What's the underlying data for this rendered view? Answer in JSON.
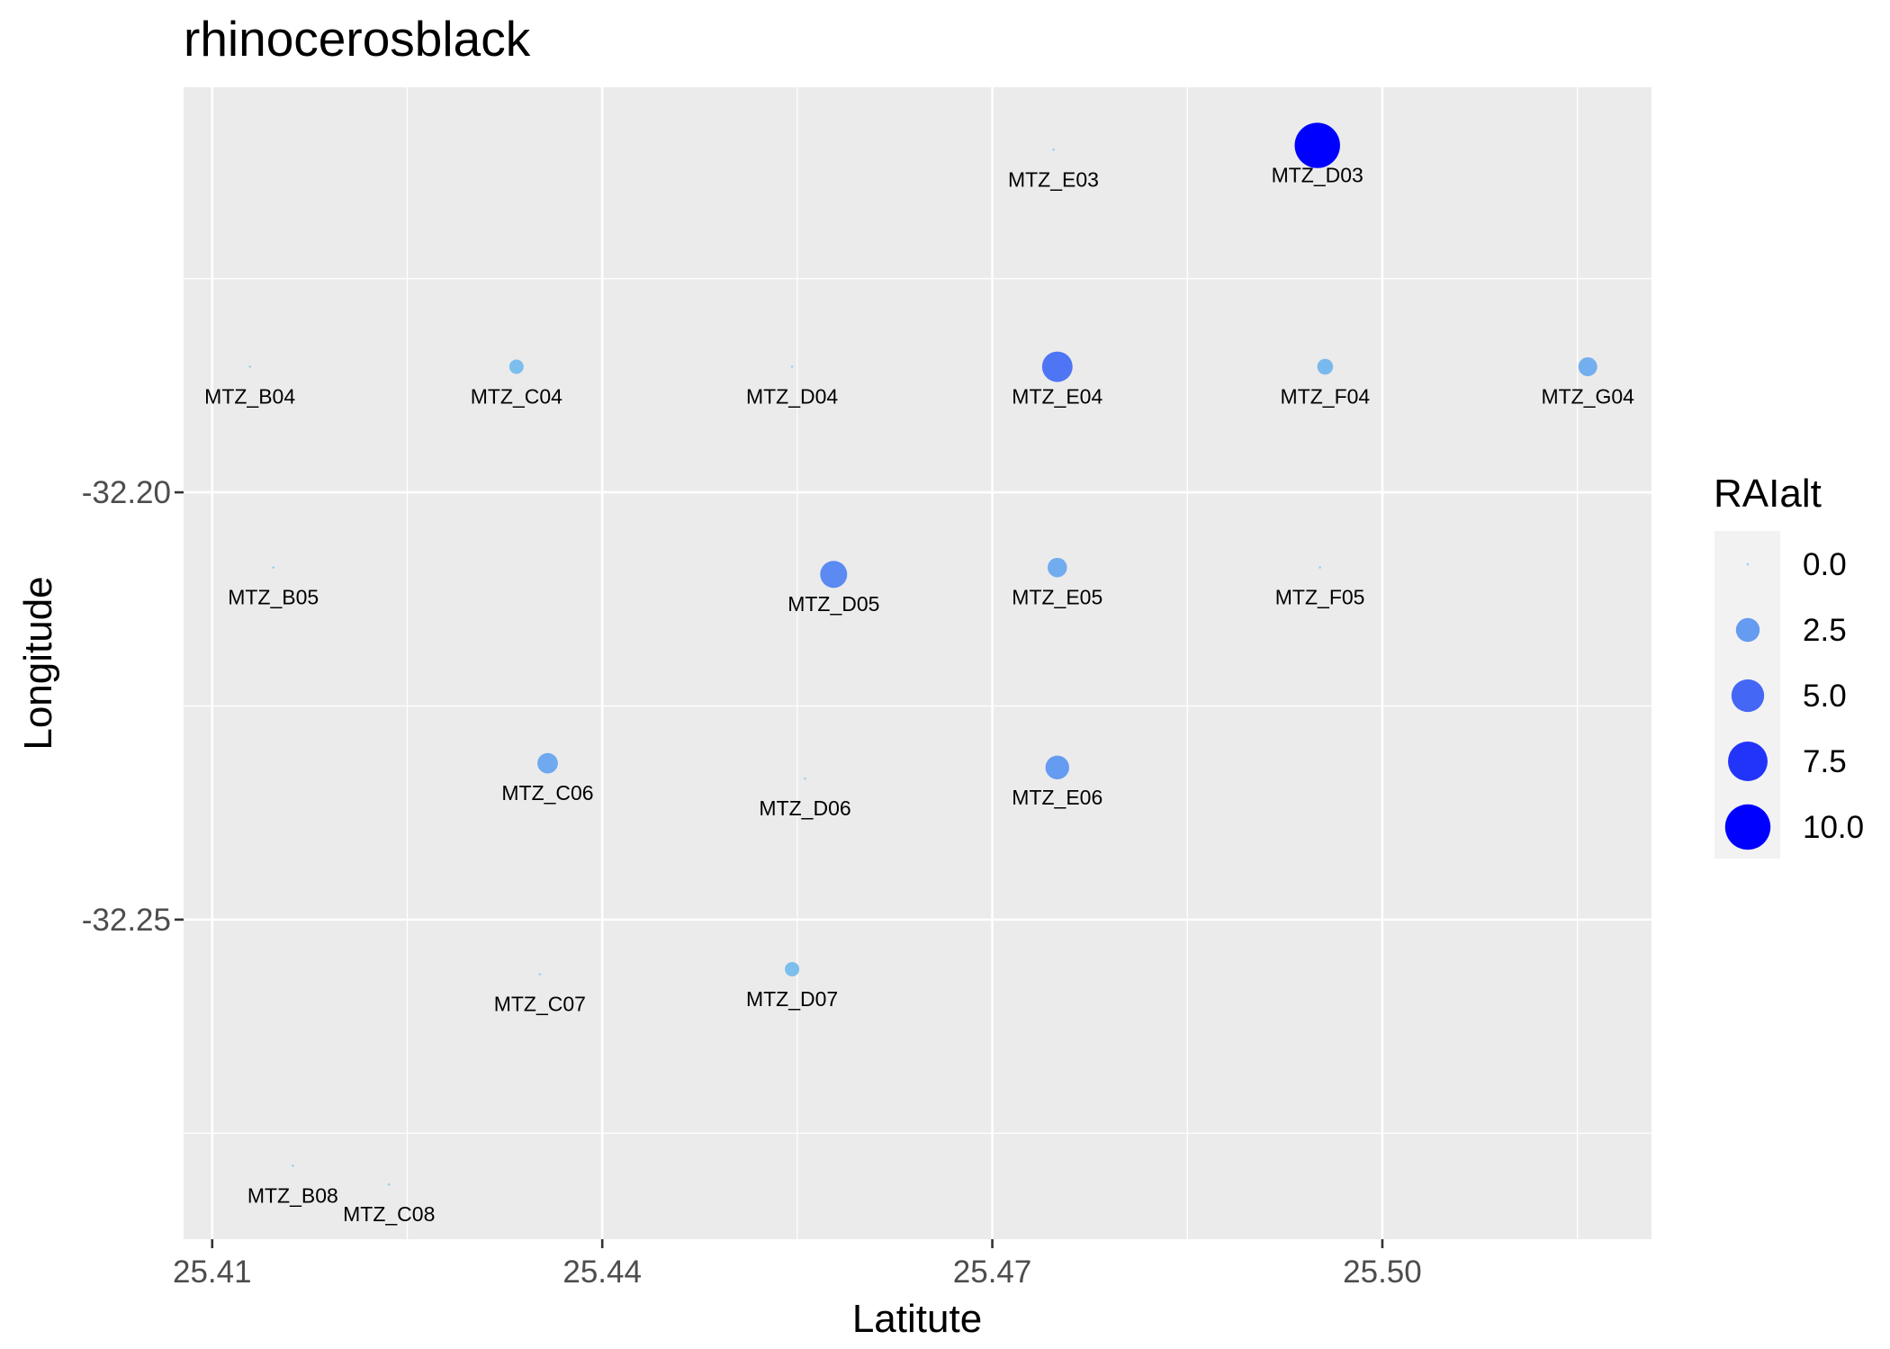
{
  "chart_data": {
    "type": "scatter",
    "title": "rhinocerosblack",
    "xlabel": "Latitute",
    "ylabel": "Longitude",
    "xlim": [
      25.4078,
      25.5207
    ],
    "ylim": [
      -32.2874,
      -32.1526
    ],
    "x_ticks": [
      25.41,
      25.44,
      25.47,
      25.5
    ],
    "x_tick_labels": [
      "25.41",
      "25.44",
      "25.47",
      "25.50"
    ],
    "x_minor_ticks": [
      25.425,
      25.455,
      25.485,
      25.515
    ],
    "y_ticks": [
      -32.2,
      -32.25
    ],
    "y_tick_labels": [
      "-32.20",
      "-32.25"
    ],
    "y_minor_ticks": [
      -32.175,
      -32.225,
      -32.275
    ],
    "grid": true,
    "size_legend": {
      "title": "RAIalt",
      "position": "right",
      "values": [
        0.0,
        2.5,
        5.0,
        7.5,
        10.0
      ],
      "labels": [
        "0.0",
        "2.5",
        "5.0",
        "7.5",
        "10.0"
      ]
    },
    "color_scale": {
      "low": "#87ceeb",
      "high": "#0000ff"
    },
    "points": [
      {
        "label": "MTZ_B04",
        "x": 25.4129,
        "y": -32.1853,
        "size": 0.0
      },
      {
        "label": "MTZ_C04",
        "x": 25.4334,
        "y": -32.1853,
        "size": 0.8
      },
      {
        "label": "MTZ_D04",
        "x": 25.4546,
        "y": -32.1853,
        "size": 0.0
      },
      {
        "label": "MTZ_E04",
        "x": 25.475,
        "y": -32.1853,
        "size": 4.3
      },
      {
        "label": "MTZ_F04",
        "x": 25.4956,
        "y": -32.1853,
        "size": 1.0
      },
      {
        "label": "MTZ_G04",
        "x": 25.5158,
        "y": -32.1853,
        "size": 1.5
      },
      {
        "label": "MTZ_E03",
        "x": 25.4747,
        "y": -32.1599,
        "size": 0.0
      },
      {
        "label": "MTZ_D03",
        "x": 25.495,
        "y": -32.1594,
        "size": 10.0
      },
      {
        "label": "MTZ_B05",
        "x": 25.4147,
        "y": -32.2088,
        "size": 0.0
      },
      {
        "label": "MTZ_D05",
        "x": 25.4578,
        "y": -32.2096,
        "size": 3.3
      },
      {
        "label": "MTZ_E05",
        "x": 25.475,
        "y": -32.2088,
        "size": 1.6
      },
      {
        "label": "MTZ_F05",
        "x": 25.4952,
        "y": -32.2088,
        "size": 0.0
      },
      {
        "label": "MTZ_C06",
        "x": 25.4358,
        "y": -32.2317,
        "size": 1.8
      },
      {
        "label": "MTZ_D06",
        "x": 25.4556,
        "y": -32.2335,
        "size": 0.0
      },
      {
        "label": "MTZ_E06",
        "x": 25.475,
        "y": -32.2322,
        "size": 2.5
      },
      {
        "label": "MTZ_C07",
        "x": 25.4352,
        "y": -32.2564,
        "size": 0.0
      },
      {
        "label": "MTZ_D07",
        "x": 25.4546,
        "y": -32.2558,
        "size": 0.8
      },
      {
        "label": "MTZ_B08",
        "x": 25.4162,
        "y": -32.2788,
        "size": 0.0
      },
      {
        "label": "MTZ_C08",
        "x": 25.4236,
        "y": -32.281,
        "size": 0.0
      }
    ]
  }
}
